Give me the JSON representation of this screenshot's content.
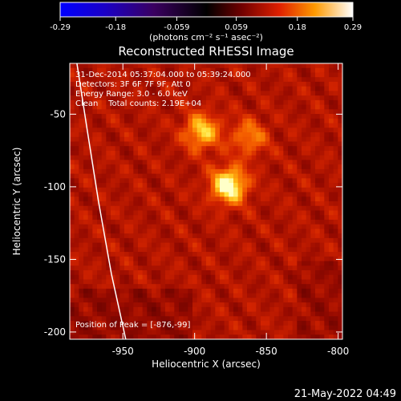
{
  "chart_data": {
    "type": "heatmap",
    "title": "Reconstructed RHESSI Image",
    "xlabel": "Heliocentric X (arcsec)",
    "ylabel": "Heliocentric Y (arcsec)",
    "colorbar": {
      "label": "(photons cm⁻² s⁻¹ asec⁻²)",
      "range": [
        -0.29,
        0.29
      ],
      "ticks": [
        -0.29,
        -0.18,
        -0.059,
        0.059,
        0.18,
        0.29
      ],
      "tick_labels": [
        "-0.29",
        "-0.18",
        "-0.059",
        "0.059",
        "0.18",
        "0.29"
      ]
    },
    "xlim": [
      -987,
      -797
    ],
    "ylim": [
      -205,
      -15
    ],
    "x_ticks": [
      -950,
      -900,
      -850,
      -800
    ],
    "x_tick_labels": [
      "-950",
      "-900",
      "-850",
      "-800"
    ],
    "y_ticks": [
      -50,
      -100,
      -150,
      -200
    ],
    "y_tick_labels": [
      "-50",
      "-100",
      "-150",
      "-200"
    ],
    "annotations": {
      "time": "31-Dec-2014 05:37:04.000 to 05:39:24.000",
      "detectors": "Detectors: 3F 6F 7F 9F, Att 0",
      "energy": "Energy Range: 3.0 - 6.0 keV",
      "clean": "Clean    Total counts: 2.19E+04",
      "peak": "Position of Peak = [-876,-99]"
    },
    "peak_position": [
      -876,
      -99
    ],
    "sources": [
      {
        "x": -876,
        "y": -99,
        "peak": 0.29
      },
      {
        "x": -895,
        "y": -62,
        "peak": 0.21
      },
      {
        "x": -862,
        "y": -66,
        "peak": 0.14
      }
    ],
    "limb": [
      [
        -982,
        -15
      ],
      [
        -975,
        -60
      ],
      [
        -967,
        -110
      ],
      [
        -958,
        -160
      ],
      [
        -948,
        -205
      ]
    ],
    "footer": "21-May-2022 04:49"
  }
}
